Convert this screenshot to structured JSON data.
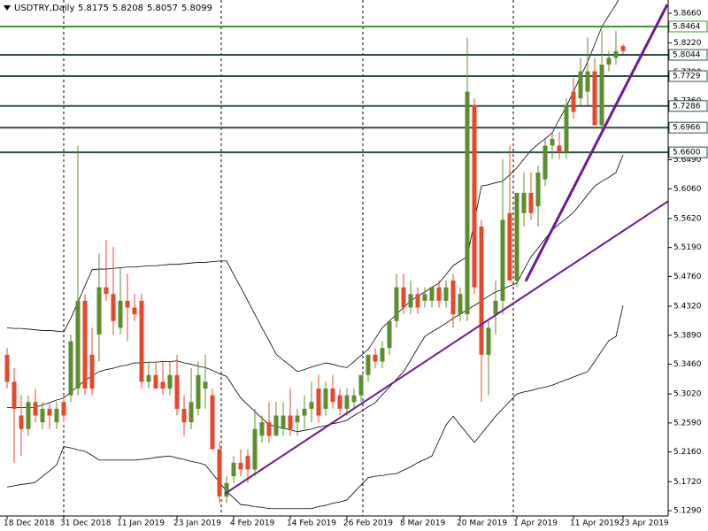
{
  "chart_data": {
    "type": "candlestick",
    "title": "USDTRY,Daily",
    "up_color": "#5b8f2e",
    "down_color": "#e8472c",
    "categories": [
      "18 Dec 2018",
      null,
      null,
      null,
      null,
      null,
      null,
      null,
      "31 Dec 2018",
      null,
      null,
      null,
      null,
      null,
      null,
      null,
      "11 Jan 2019",
      null,
      null,
      null,
      null,
      null,
      null,
      null,
      "23 Jan 2019",
      null,
      null,
      null,
      null,
      null,
      null,
      null,
      "4 Feb 2019",
      null,
      null,
      null,
      null,
      null,
      null,
      null,
      "14 Feb 2019",
      null,
      null,
      null,
      null,
      null,
      null,
      null,
      "26 Feb 2019",
      null,
      null,
      null,
      null,
      null,
      null,
      null,
      "8 Mar 2019",
      null,
      null,
      null,
      null,
      null,
      null,
      null,
      "20 Mar 2019",
      null,
      null,
      null,
      null,
      null,
      null,
      null,
      "1 Apr 2019",
      null,
      null,
      null,
      null,
      null,
      null,
      null,
      "11 Apr 2019",
      null,
      null,
      null,
      null,
      null,
      null,
      "23 Apr 2019"
    ],
    "ohlc": [
      [
        5.36,
        5.37,
        5.31,
        5.32
      ],
      [
        5.32,
        5.34,
        5.2,
        5.28
      ],
      [
        5.27,
        5.3,
        5.21,
        5.25
      ],
      [
        5.25,
        5.3,
        5.24,
        5.29
      ],
      [
        5.29,
        5.31,
        5.26,
        5.27
      ],
      [
        5.26,
        5.29,
        5.25,
        5.28
      ],
      [
        5.28,
        5.29,
        5.25,
        5.27
      ],
      [
        5.26,
        5.29,
        5.25,
        5.28
      ],
      [
        5.29,
        5.3,
        5.26,
        5.27
      ],
      [
        5.3,
        5.39,
        5.29,
        5.38
      ],
      [
        5.31,
        5.67,
        5.3,
        5.44
      ],
      [
        5.44,
        5.45,
        5.3,
        5.31
      ],
      [
        5.36,
        5.4,
        5.3,
        5.31
      ],
      [
        5.39,
        5.51,
        5.35,
        5.46
      ],
      [
        5.46,
        5.53,
        5.44,
        5.45
      ],
      [
        5.45,
        5.52,
        5.39,
        5.41
      ],
      [
        5.4,
        5.49,
        5.39,
        5.44
      ],
      [
        5.44,
        5.48,
        5.38,
        5.43
      ],
      [
        5.43,
        5.45,
        5.41,
        5.42
      ],
      [
        5.44,
        5.45,
        5.31,
        5.32
      ],
      [
        5.32,
        5.35,
        5.31,
        5.33
      ],
      [
        5.33,
        5.35,
        5.31,
        5.31
      ],
      [
        5.32,
        5.35,
        5.3,
        5.31
      ],
      [
        5.31,
        5.35,
        5.3,
        5.33
      ],
      [
        5.33,
        5.36,
        5.27,
        5.28
      ],
      [
        5.28,
        5.3,
        5.24,
        5.26
      ],
      [
        5.26,
        5.34,
        5.25,
        5.29
      ],
      [
        5.28,
        5.35,
        5.27,
        5.33
      ],
      [
        5.31,
        5.36,
        5.28,
        5.32
      ],
      [
        5.3,
        5.31,
        5.22,
        5.22
      ],
      [
        5.22,
        5.23,
        5.14,
        5.15
      ],
      [
        5.15,
        5.18,
        5.14,
        5.17
      ],
      [
        5.18,
        5.21,
        5.17,
        5.2
      ],
      [
        5.2,
        5.22,
        5.18,
        5.19
      ],
      [
        5.21,
        5.22,
        5.17,
        5.19
      ],
      [
        5.19,
        5.28,
        5.18,
        5.25
      ],
      [
        5.24,
        5.27,
        5.23,
        5.26
      ],
      [
        5.26,
        5.29,
        5.23,
        5.24
      ],
      [
        5.24,
        5.29,
        5.24,
        5.27
      ],
      [
        5.25,
        5.29,
        5.24,
        5.27
      ],
      [
        5.27,
        5.31,
        5.24,
        5.25
      ],
      [
        5.26,
        5.28,
        5.24,
        5.27
      ],
      [
        5.27,
        5.3,
        5.25,
        5.28
      ],
      [
        5.28,
        5.32,
        5.26,
        5.29
      ],
      [
        5.31,
        5.33,
        5.26,
        5.27
      ],
      [
        5.28,
        5.32,
        5.27,
        5.31
      ],
      [
        5.31,
        5.33,
        5.28,
        5.29
      ],
      [
        5.3,
        5.31,
        5.27,
        5.28
      ],
      [
        5.28,
        5.31,
        5.27,
        5.3
      ],
      [
        5.29,
        5.31,
        5.28,
        5.3
      ],
      [
        5.3,
        5.33,
        5.29,
        5.33
      ],
      [
        5.33,
        5.36,
        5.32,
        5.36
      ],
      [
        5.36,
        5.37,
        5.34,
        5.35
      ],
      [
        5.35,
        5.38,
        5.34,
        5.37
      ],
      [
        5.37,
        5.41,
        5.36,
        5.41
      ],
      [
        5.41,
        5.48,
        5.4,
        5.46
      ],
      [
        5.46,
        5.48,
        5.42,
        5.43
      ],
      [
        5.43,
        5.47,
        5.42,
        5.45
      ],
      [
        5.45,
        5.46,
        5.42,
        5.43
      ],
      [
        5.44,
        5.46,
        5.43,
        5.45
      ],
      [
        5.44,
        5.46,
        5.43,
        5.46
      ],
      [
        5.46,
        5.47,
        5.43,
        5.44
      ],
      [
        5.44,
        5.47,
        5.43,
        5.46
      ],
      [
        5.47,
        5.48,
        5.4,
        5.42
      ],
      [
        5.42,
        5.46,
        5.41,
        5.45
      ],
      [
        5.42,
        5.83,
        5.41,
        5.75
      ],
      [
        5.73,
        5.74,
        5.45,
        5.46
      ],
      [
        5.55,
        5.56,
        5.29,
        5.36
      ],
      [
        5.36,
        5.41,
        5.3,
        5.4
      ],
      [
        5.42,
        5.47,
        5.39,
        5.44
      ],
      [
        5.44,
        5.65,
        5.42,
        5.56
      ],
      [
        5.57,
        5.67,
        5.47,
        5.47
      ],
      [
        5.47,
        5.6,
        5.46,
        5.6
      ],
      [
        5.57,
        5.63,
        5.55,
        5.6
      ],
      [
        5.6,
        5.63,
        5.56,
        5.57
      ],
      [
        5.58,
        5.64,
        5.55,
        5.63
      ],
      [
        5.62,
        5.68,
        5.61,
        5.67
      ],
      [
        5.67,
        5.69,
        5.65,
        5.68
      ],
      [
        5.67,
        5.69,
        5.65,
        5.66
      ],
      [
        5.66,
        5.74,
        5.65,
        5.73
      ],
      [
        5.75,
        5.77,
        5.71,
        5.72
      ],
      [
        5.74,
        5.8,
        5.73,
        5.78
      ],
      [
        5.75,
        5.83,
        5.73,
        5.78
      ],
      [
        5.78,
        5.8,
        5.7,
        5.7
      ],
      [
        5.7,
        5.84,
        5.69,
        5.79
      ],
      [
        5.79,
        5.81,
        5.78,
        5.8
      ],
      [
        5.8,
        5.84,
        5.79,
        5.81
      ],
      [
        5.8175,
        5.8208,
        5.8057,
        5.8099
      ]
    ],
    "bands": [
      {
        "color": "#000000",
        "values": [
          5.4,
          5.399,
          5.399,
          5.398,
          5.397,
          5.396,
          5.396,
          5.395,
          5.394,
          5.414,
          5.438,
          5.462,
          5.486,
          5.487,
          5.487,
          5.488,
          5.489,
          5.49,
          5.49,
          5.491,
          5.492,
          5.492,
          5.493,
          5.494,
          5.494,
          5.495,
          5.496,
          5.497,
          5.497,
          5.498,
          5.499,
          5.499,
          5.479,
          5.46,
          5.44,
          5.42,
          5.4,
          5.381,
          5.361,
          5.352,
          5.344,
          5.335,
          5.338,
          5.342,
          5.345,
          5.348,
          5.346,
          5.343,
          5.341,
          5.35,
          5.359,
          5.368,
          5.384,
          5.4,
          5.41,
          5.42,
          5.43,
          5.44,
          5.447,
          5.453,
          5.46,
          5.466,
          5.479,
          5.492,
          5.499,
          5.505,
          5.558,
          5.61,
          5.612,
          5.615,
          5.617,
          5.627,
          5.637,
          5.65,
          5.663,
          5.672,
          5.68,
          5.689,
          5.709,
          5.728,
          5.75,
          5.772,
          5.794,
          5.82,
          5.846,
          5.863,
          5.879,
          5.899
        ]
      },
      {
        "color": "#000000",
        "values": [
          5.282,
          5.282,
          5.282,
          5.282,
          5.282,
          5.286,
          5.289,
          5.293,
          5.296,
          5.305,
          5.313,
          5.322,
          5.329,
          5.335,
          5.338,
          5.34,
          5.343,
          5.345,
          5.348,
          5.348,
          5.349,
          5.349,
          5.35,
          5.35,
          5.351,
          5.348,
          5.346,
          5.343,
          5.341,
          5.337,
          5.332,
          5.328,
          5.312,
          5.296,
          5.286,
          5.276,
          5.266,
          5.256,
          5.254,
          5.251,
          5.249,
          5.246,
          5.248,
          5.25,
          5.253,
          5.255,
          5.258,
          5.26,
          5.263,
          5.27,
          5.276,
          5.283,
          5.289,
          5.301,
          5.312,
          5.324,
          5.335,
          5.352,
          5.37,
          5.387,
          5.394,
          5.4,
          5.407,
          5.414,
          5.42,
          5.427,
          5.433,
          5.44,
          5.447,
          5.453,
          5.457,
          5.462,
          5.466,
          5.486,
          5.505,
          5.518,
          5.532,
          5.545,
          5.554,
          5.562,
          5.571,
          5.584,
          5.597,
          5.61,
          5.617,
          5.623,
          5.63,
          5.656
        ]
      },
      {
        "color": "#000000",
        "values": [
          5.164,
          5.166,
          5.168,
          5.169,
          5.171,
          5.18,
          5.188,
          5.197,
          5.224,
          5.222,
          5.219,
          5.217,
          5.211,
          5.204,
          5.204,
          5.204,
          5.204,
          5.204,
          5.204,
          5.205,
          5.206,
          5.208,
          5.209,
          5.21,
          5.207,
          5.205,
          5.202,
          5.2,
          5.197,
          5.184,
          5.171,
          5.158,
          5.148,
          5.138,
          5.137,
          5.135,
          5.134,
          5.132,
          5.132,
          5.132,
          5.132,
          5.132,
          5.132,
          5.132,
          5.135,
          5.137,
          5.14,
          5.142,
          5.145,
          5.156,
          5.167,
          5.178,
          5.18,
          5.181,
          5.183,
          5.184,
          5.189,
          5.194,
          5.2,
          5.205,
          5.21,
          5.233,
          5.256,
          5.269,
          5.256,
          5.243,
          5.23,
          5.243,
          5.256,
          5.269,
          5.28,
          5.291,
          5.302,
          5.305,
          5.307,
          5.31,
          5.312,
          5.315,
          5.319,
          5.323,
          5.327,
          5.331,
          5.335,
          5.35,
          5.366,
          5.381,
          5.387,
          5.433
        ]
      }
    ],
    "levels": [
      {
        "value": 5.8464,
        "color": "#3a9a2a"
      },
      {
        "value": 5.8044,
        "color": "#2f4f4f"
      },
      {
        "value": 5.7729,
        "color": "#2f4f4f"
      },
      {
        "value": 5.7286,
        "color": "#2f4f4f"
      },
      {
        "value": 5.6966,
        "color": "#2f4f4f"
      },
      {
        "value": 5.66,
        "label": "5.6600",
        "color": "#2f4f4f"
      }
    ],
    "trendlines": [
      {
        "x": [
          30.75,
          99.5
        ],
        "y": [
          5.154,
          5.63
        ],
        "color": "#6a1b9a",
        "width": 2
      },
      {
        "x": [
          73.25,
          93.25
        ],
        "y": [
          5.469,
          5.879
        ],
        "color": "#6a1b9a",
        "width": 3
      }
    ],
    "ylim": [
      5.1212,
      5.8857
    ],
    "yticks": [
      {
        "value": 5.866,
        "label": "5.8660"
      },
      {
        "value": 5.822,
        "label": "5.8220"
      },
      {
        "value": 5.779,
        "label": "5.7790"
      },
      {
        "value": 5.736,
        "label": "5.7360"
      },
      {
        "value": 5.692,
        "label": "5.6920"
      },
      {
        "value": 5.649,
        "label": "5.6490"
      },
      {
        "value": 5.606,
        "label": "5.6060"
      },
      {
        "value": 5.562,
        "label": "5.5620"
      },
      {
        "value": 5.519,
        "label": "5.5190"
      },
      {
        "value": 5.476,
        "label": "5.4760"
      },
      {
        "value": 5.432,
        "label": "5.4320"
      },
      {
        "value": 5.389,
        "label": "5.3890"
      },
      {
        "value": 5.346,
        "label": "5.3460"
      },
      {
        "value": 5.302,
        "label": "5.3020"
      },
      {
        "value": 5.259,
        "label": "5.2590"
      },
      {
        "value": 5.216,
        "label": "5.2160"
      },
      {
        "value": 5.172,
        "label": "5.1720"
      },
      {
        "value": 5.129,
        "label": "5.1290"
      }
    ]
  }
}
